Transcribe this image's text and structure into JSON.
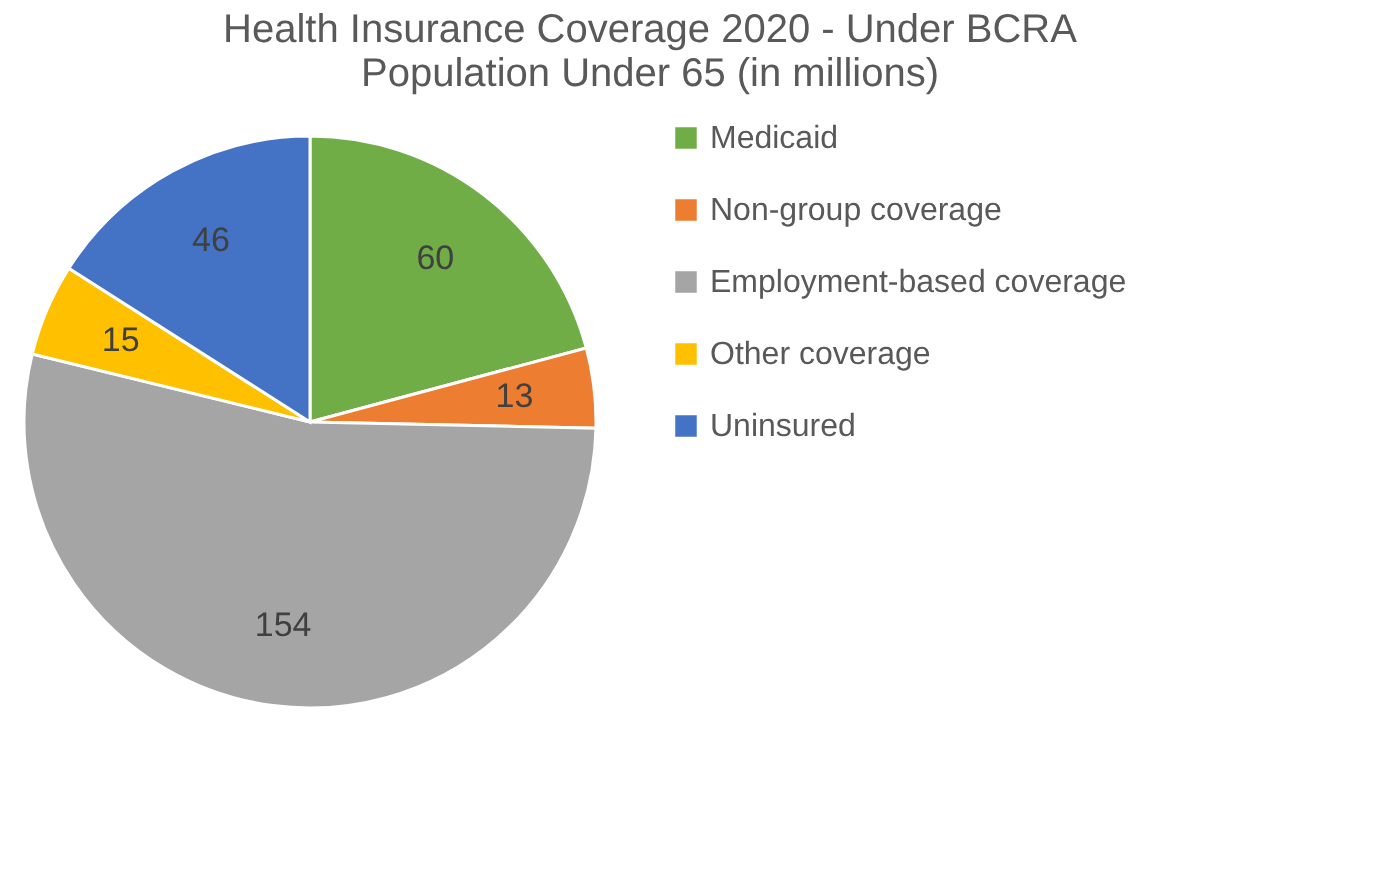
{
  "chart_data": {
    "type": "pie",
    "title": "Health Insurance Coverage 2020 - Under BCRA\nPopulation Under 65 (in millions)",
    "categories": [
      "Medicaid",
      "Non-group coverage",
      "Employment-based coverage",
      "Other coverage",
      "Uninsured"
    ],
    "values": [
      60,
      13,
      154,
      15,
      46
    ],
    "colors": [
      "#70ad47",
      "#ed7d31",
      "#a5a5a5",
      "#ffc000",
      "#4472c4"
    ],
    "data_labels": true,
    "legend": "right"
  }
}
